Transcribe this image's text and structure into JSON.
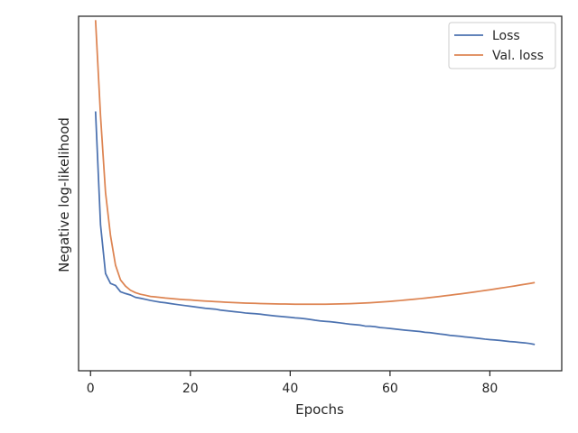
{
  "chart_data": {
    "type": "line",
    "title": "",
    "xlabel": "Epochs",
    "ylabel": "Negative log-likelihood",
    "xlim": [
      -2.4,
      94.4
    ],
    "ylim": [
      0,
      1
    ],
    "xticks": [
      0,
      20,
      40,
      60,
      80
    ],
    "yticks_visible": false,
    "grid": false,
    "legend_position": "top-right",
    "x": [
      1,
      2,
      3,
      4,
      5,
      6,
      7,
      8,
      9,
      10,
      11,
      12,
      13,
      14,
      15,
      16,
      17,
      18,
      19,
      20,
      21,
      22,
      23,
      24,
      25,
      26,
      27,
      28,
      29,
      30,
      31,
      32,
      33,
      34,
      35,
      36,
      37,
      38,
      39,
      40,
      41,
      42,
      43,
      44,
      45,
      46,
      47,
      48,
      49,
      50,
      51,
      52,
      53,
      54,
      55,
      56,
      57,
      58,
      59,
      60,
      61,
      62,
      63,
      64,
      65,
      66,
      67,
      68,
      69,
      70,
      71,
      72,
      73,
      74,
      75,
      76,
      77,
      78,
      79,
      80,
      81,
      82,
      83,
      84,
      85,
      86,
      87,
      88,
      89
    ],
    "series": [
      {
        "name": "Loss",
        "color": "#4c72b0",
        "values": [
          0.7316,
          0.4118,
          0.2743,
          0.2462,
          0.2405,
          0.2228,
          0.2178,
          0.2137,
          0.2071,
          0.2046,
          0.2015,
          0.1983,
          0.1958,
          0.1933,
          0.1917,
          0.1895,
          0.1875,
          0.1856,
          0.1837,
          0.1818,
          0.1801,
          0.1782,
          0.1763,
          0.1749,
          0.1738,
          0.1712,
          0.1695,
          0.168,
          0.1665,
          0.1649,
          0.163,
          0.1619,
          0.161,
          0.1596,
          0.1578,
          0.1561,
          0.1547,
          0.1533,
          0.1519,
          0.1508,
          0.1492,
          0.1481,
          0.1466,
          0.1446,
          0.1424,
          0.1407,
          0.1394,
          0.1383,
          0.1368,
          0.135,
          0.1331,
          0.1313,
          0.1302,
          0.1288,
          0.1261,
          0.1255,
          0.1244,
          0.1218,
          0.1207,
          0.1192,
          0.1176,
          0.116,
          0.1144,
          0.1131,
          0.1119,
          0.1108,
          0.1085,
          0.1074,
          0.1057,
          0.1036,
          0.1022,
          0.1,
          0.0987,
          0.0972,
          0.0955,
          0.0941,
          0.0927,
          0.0911,
          0.0892,
          0.0879,
          0.0868,
          0.0855,
          0.084,
          0.0824,
          0.0813,
          0.0799,
          0.0787,
          0.0768,
          0.074
        ]
      },
      {
        "name": "Val. loss",
        "color": "#dd8452",
        "values": [
          0.9891,
          0.7187,
          0.5024,
          0.3812,
          0.2978,
          0.2563,
          0.2387,
          0.2271,
          0.2203,
          0.2158,
          0.2129,
          0.2097,
          0.2083,
          0.2068,
          0.2051,
          0.2039,
          0.2026,
          0.2014,
          0.2004,
          0.1996,
          0.1986,
          0.1976,
          0.1967,
          0.1958,
          0.1951,
          0.1943,
          0.1935,
          0.1928,
          0.1922,
          0.1916,
          0.191,
          0.1905,
          0.1901,
          0.1897,
          0.1893,
          0.1889,
          0.1886,
          0.1884,
          0.1882,
          0.188,
          0.1878,
          0.1877,
          0.1876,
          0.1876,
          0.1876,
          0.1877,
          0.1878,
          0.188,
          0.1882,
          0.1885,
          0.1889,
          0.1894,
          0.1899,
          0.1905,
          0.1912,
          0.1919,
          0.1927,
          0.1936,
          0.1946,
          0.1957,
          0.1968,
          0.198,
          0.1993,
          0.2006,
          0.202,
          0.2034,
          0.2049,
          0.2065,
          0.2081,
          0.2097,
          0.2114,
          0.2131,
          0.2149,
          0.2167,
          0.2186,
          0.2205,
          0.2224,
          0.2244,
          0.2264,
          0.2285,
          0.2306,
          0.2327,
          0.2349,
          0.2371,
          0.2393,
          0.2416,
          0.2439,
          0.2462,
          0.2486
        ]
      }
    ]
  }
}
